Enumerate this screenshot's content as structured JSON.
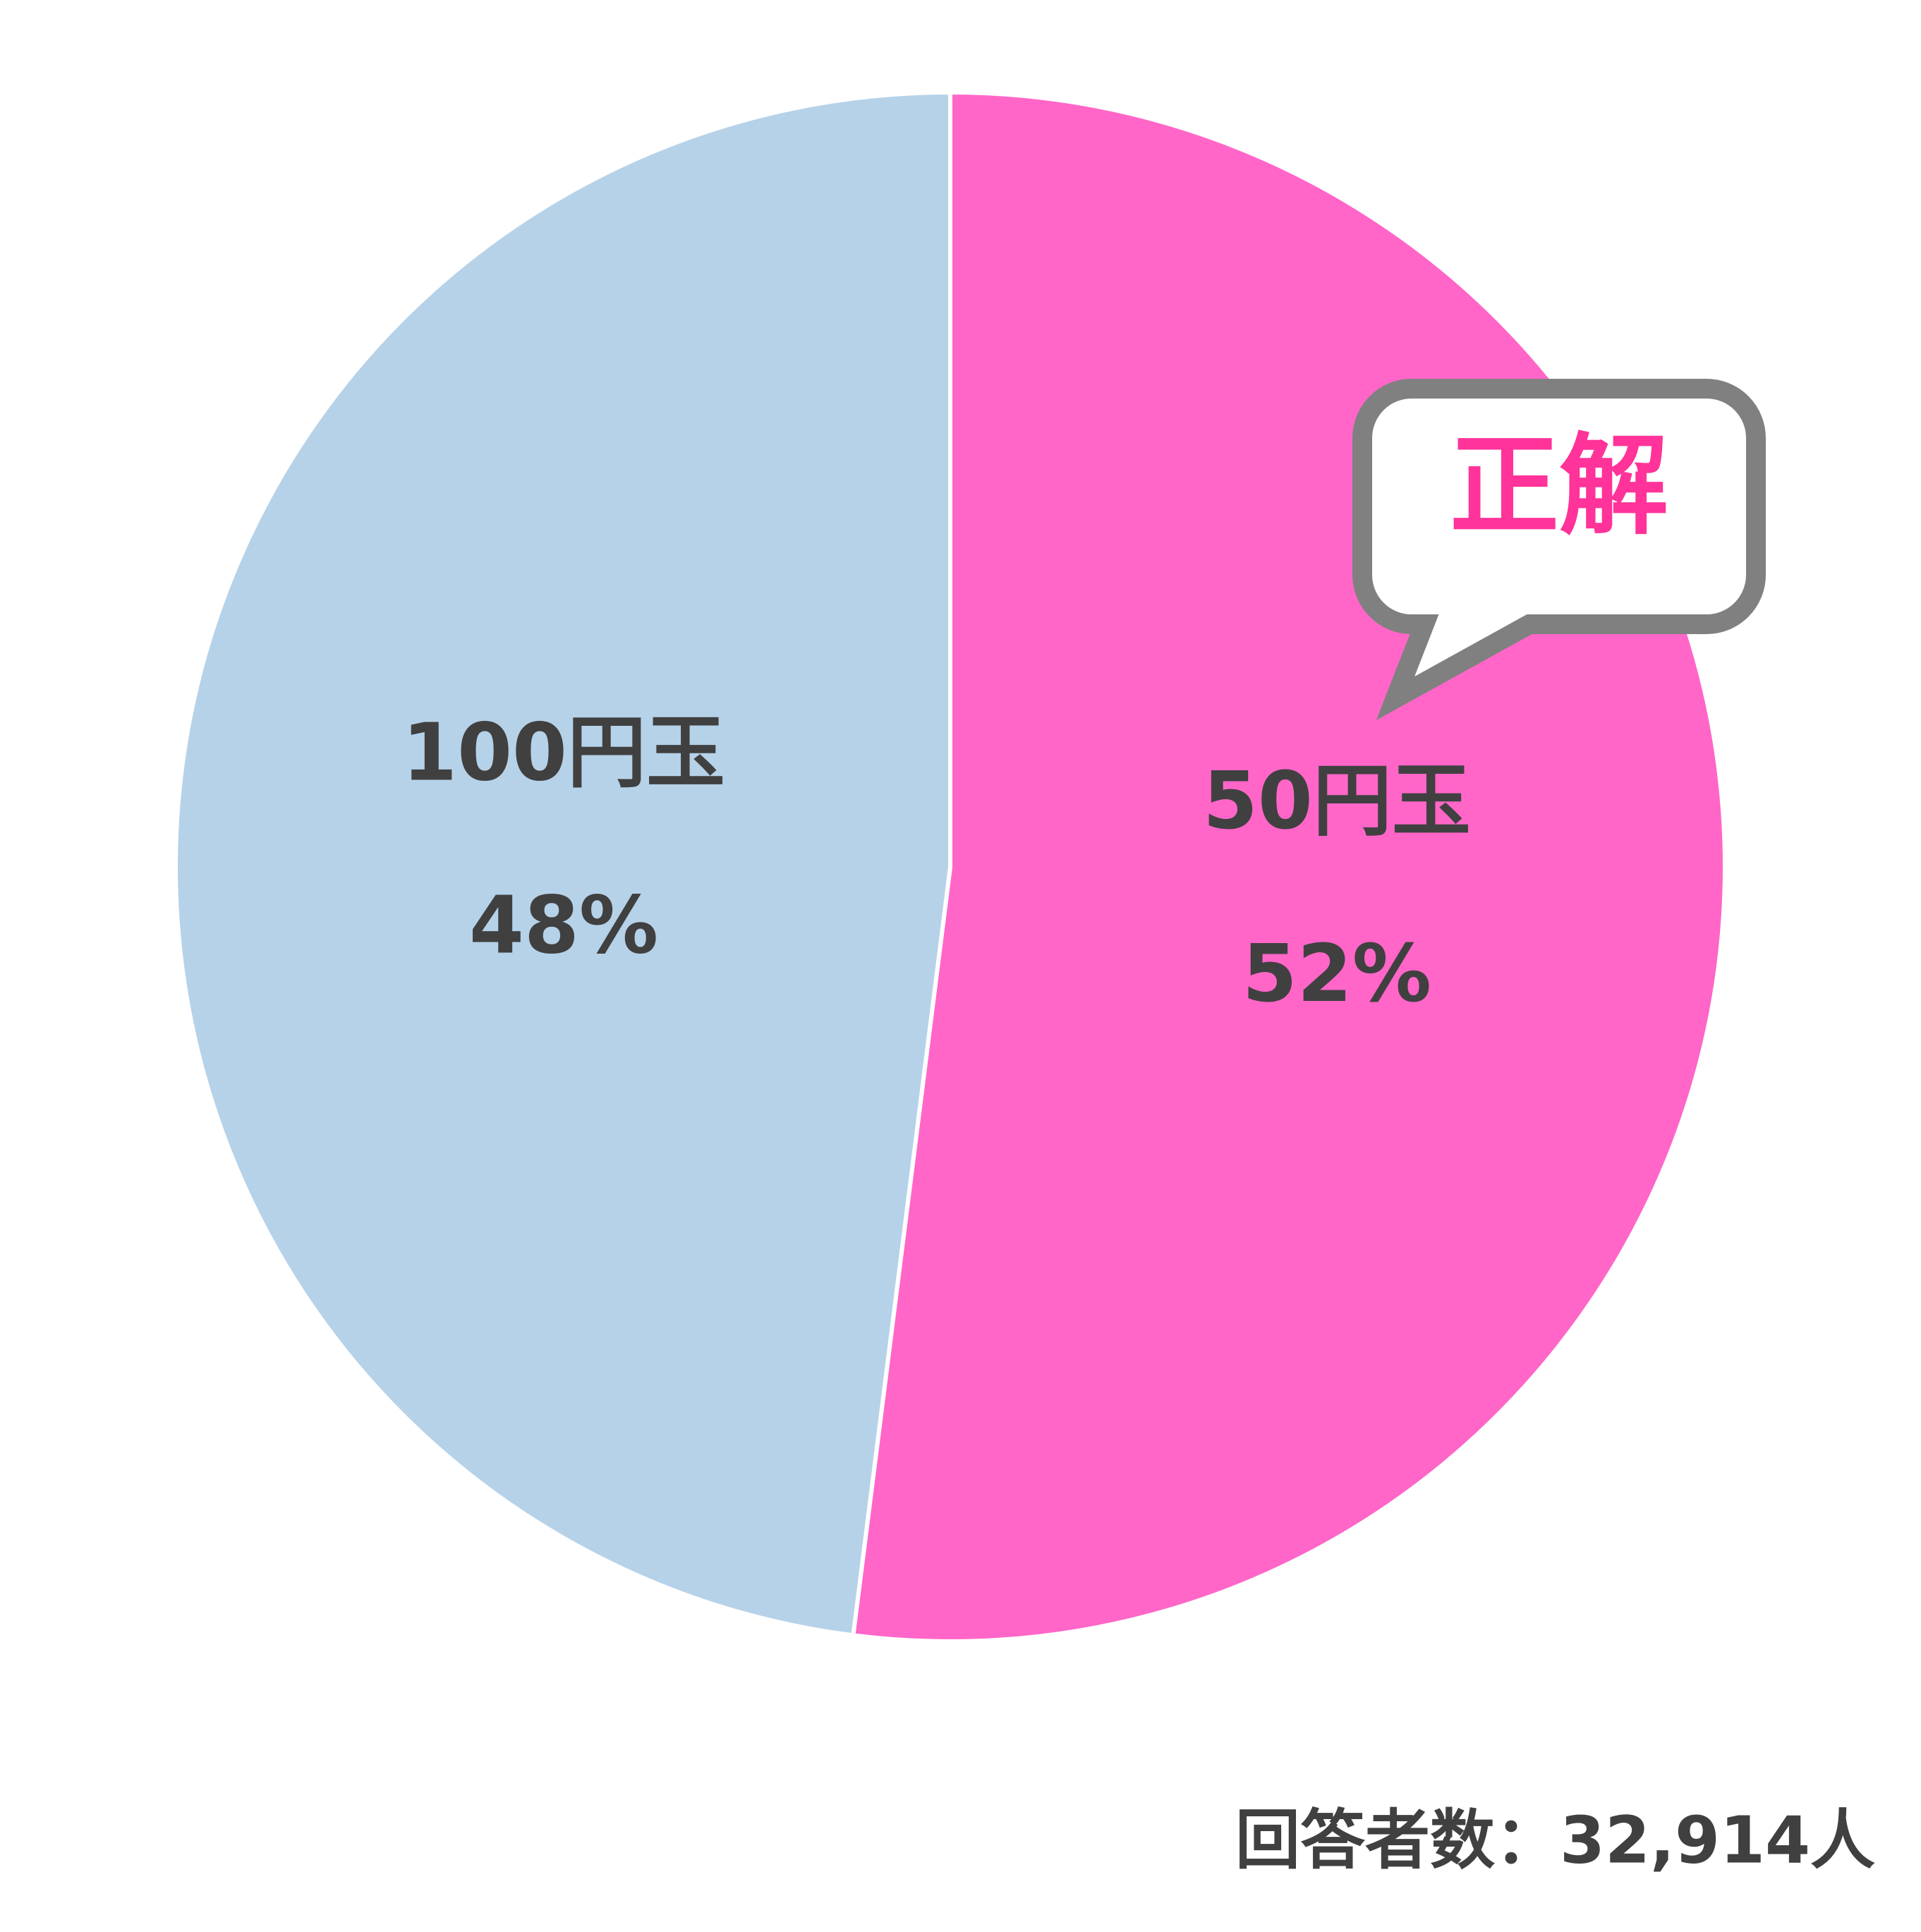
{
  "chart_data": {
    "type": "pie",
    "categories": [
      "50円玉",
      "100円玉"
    ],
    "values": [
      52,
      48
    ],
    "value_labels": [
      "52%",
      "48%"
    ],
    "colors": [
      "#ff66c8",
      "#b6d2e9"
    ],
    "annotation": "正解",
    "footnote": "回答者数：32,914人"
  }
}
